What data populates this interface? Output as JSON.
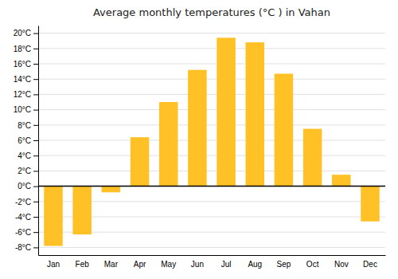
{
  "chart_data": {
    "type": "bar",
    "title": "Average monthly temperatures (°C ) in Vahan",
    "categories": [
      "Jan",
      "Feb",
      "Mar",
      "Apr",
      "May",
      "Jun",
      "Jul",
      "Aug",
      "Sep",
      "Oct",
      "Nov",
      "Dec"
    ],
    "values": [
      -7.8,
      -6.3,
      -0.8,
      6.4,
      11.0,
      15.2,
      19.4,
      18.8,
      14.7,
      7.5,
      1.5,
      -4.6
    ],
    "color": "#FFC125",
    "ylim": [
      -9,
      21
    ],
    "yticks": [
      {
        "value": -8,
        "label": "-8°C"
      },
      {
        "value": -6,
        "label": "-6°C"
      },
      {
        "value": -4,
        "label": "-4°C"
      },
      {
        "value": -2,
        "label": "-2°C"
      },
      {
        "value": 0,
        "label": "0°C"
      },
      {
        "value": 2,
        "label": "2°C"
      },
      {
        "value": 4,
        "label": "4°C"
      },
      {
        "value": 6,
        "label": "6°C"
      },
      {
        "value": 8,
        "label": "8°C"
      },
      {
        "value": 10,
        "label": "10°C"
      },
      {
        "value": 12,
        "label": "12°C"
      },
      {
        "value": 14,
        "label": "14°C"
      },
      {
        "value": 16,
        "label": "16°C"
      },
      {
        "value": 18,
        "label": "18°C"
      },
      {
        "value": 20,
        "label": "20°C"
      }
    ],
    "grid": true
  }
}
